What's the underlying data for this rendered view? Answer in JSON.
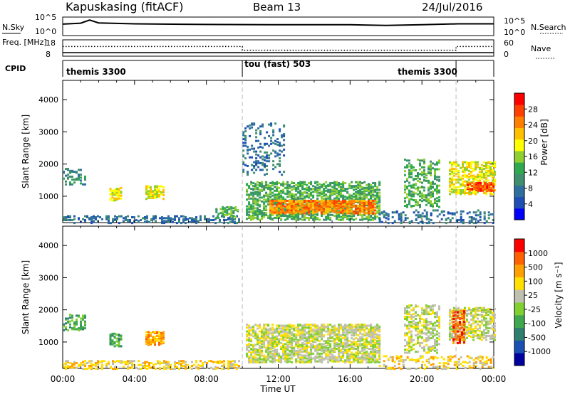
{
  "header": {
    "station": "Kapuskasing (fitACF)",
    "beam": "Beam 13",
    "date": "24/Jul/2016"
  },
  "chart_data": [
    {
      "type": "line",
      "panel": "noise",
      "ylabel_left": "N.Sky",
      "ylabel_right": "N.Search",
      "left_ticks": [
        "10^5",
        "10^0"
      ],
      "right_ticks": [
        "10^5",
        "10^0"
      ],
      "x": [
        0.0,
        1.0,
        1.5,
        2.0,
        4.0,
        8.0,
        12.0,
        16.0,
        18.0,
        20.0,
        22.0,
        24.0
      ],
      "values": [
        3.2,
        3.5,
        4.5,
        3.6,
        3.3,
        3.1,
        3.0,
        3.0,
        2.8,
        3.0,
        3.3,
        3.3
      ],
      "ylim": [
        0,
        5
      ]
    },
    {
      "type": "line",
      "panel": "frequency",
      "ylabel_left": "Freq. [MHz]",
      "ylabel_right": "Nave",
      "left_ticks": [
        "18",
        "8"
      ],
      "right_ticks": [
        "60",
        "0"
      ],
      "series": [
        {
          "name": "Freq.",
          "x": [
            0,
            24
          ],
          "values": [
            10,
            10
          ]
        },
        {
          "name": "Nave",
          "x": [
            0,
            10.0,
            10.0,
            12.0,
            21.9,
            21.9,
            24.0
          ],
          "values": [
            38,
            38,
            22,
            22,
            22,
            38,
            38
          ]
        }
      ]
    },
    {
      "type": "table",
      "panel": "cpid",
      "label": "CPID",
      "segments": [
        {
          "name": "themis 3300",
          "start": 0,
          "end": 10.0
        },
        {
          "name": "tou (fast) 503",
          "start": 10.0,
          "end": 21.9
        },
        {
          "name": "themis 3300",
          "start": 21.9,
          "end": 24.0
        }
      ]
    },
    {
      "type": "heatmap",
      "panel": "power",
      "ylabel": "Slant Range [km]",
      "yticks": [
        1000,
        2000,
        3000,
        4000
      ],
      "ylim": [
        180,
        4600
      ],
      "colorbar_label": "Power [dB]",
      "colorbar_ticks": [
        "4",
        "8",
        "12",
        "16",
        "20",
        "24",
        "28"
      ],
      "colors": [
        "#0000ff",
        "#1f4fb4",
        "#2f6fa0",
        "#3f8f6f",
        "#2fa84f",
        "#8fd030",
        "#ffff00",
        "#ffc000",
        "#ff8000",
        "#ff4000",
        "#ff0000"
      ],
      "regions": [
        {
          "t0": 0.0,
          "t1": 1.3,
          "r0": 1400,
          "r1": 1900,
          "v": 3,
          "d": 0.3
        },
        {
          "t0": 0.0,
          "t1": 9.8,
          "r0": 200,
          "r1": 420,
          "v": 2,
          "d": 0.3
        },
        {
          "t0": 2.6,
          "t1": 3.2,
          "r0": 900,
          "r1": 1300,
          "v": 6,
          "d": 0.5
        },
        {
          "t0": 4.6,
          "t1": 5.6,
          "r0": 950,
          "r1": 1350,
          "v": 6,
          "d": 0.55
        },
        {
          "t0": 8.5,
          "t1": 9.7,
          "r0": 300,
          "r1": 700,
          "v": 4,
          "d": 0.3
        },
        {
          "t0": 10.0,
          "t1": 12.3,
          "r0": 1700,
          "r1": 3300,
          "v": 2,
          "d": 0.15
        },
        {
          "t0": 10.2,
          "t1": 17.6,
          "r0": 300,
          "r1": 1500,
          "v": 4,
          "d": 0.45
        },
        {
          "t0": 11.5,
          "t1": 17.4,
          "r0": 500,
          "r1": 900,
          "v": 8,
          "d": 0.6
        },
        {
          "t0": 19.0,
          "t1": 21.0,
          "r0": 700,
          "r1": 2200,
          "v": 4,
          "d": 0.3
        },
        {
          "t0": 21.5,
          "t1": 24.0,
          "r0": 1100,
          "r1": 2100,
          "v": 6,
          "d": 0.45
        },
        {
          "t0": 22.5,
          "t1": 24.0,
          "r0": 1200,
          "r1": 1450,
          "v": 9,
          "d": 0.5
        },
        {
          "t0": 17.6,
          "t1": 24.0,
          "r0": 200,
          "r1": 600,
          "v": 2,
          "d": 0.2
        }
      ]
    },
    {
      "type": "heatmap",
      "panel": "velocity",
      "ylabel": "Slant Range [km]",
      "yticks": [
        1000,
        2000,
        3000,
        4000
      ],
      "ylim": [
        180,
        4600
      ],
      "xticks": [
        "00:00",
        "04:00",
        "08:00",
        "12:00",
        "16:00",
        "20:00",
        "00:00"
      ],
      "xlabel": "Time UT",
      "colorbar_label": "Velocity [m s⁻¹]",
      "colorbar_ticks": [
        "1000",
        "500",
        "100",
        "25",
        "-25",
        "-100",
        "-500",
        "-1000"
      ],
      "colors": [
        "#0000a0",
        "#1a4fb4",
        "#2f7f6f",
        "#3fa84f",
        "#7fd030",
        "#c0c0b0",
        "#ffe000",
        "#ffa000",
        "#ff6000",
        "#ff0000"
      ],
      "regions": [
        {
          "t0": 0.0,
          "t1": 1.3,
          "r0": 1400,
          "r1": 1900,
          "v": 3,
          "d": 0.3
        },
        {
          "t0": 2.6,
          "t1": 3.2,
          "r0": 900,
          "r1": 1300,
          "v": 3,
          "d": 0.5
        },
        {
          "t0": 4.6,
          "t1": 5.6,
          "r0": 950,
          "r1": 1350,
          "v": 7,
          "d": 0.55
        },
        {
          "t0": 0.0,
          "t1": 9.8,
          "r0": 200,
          "r1": 450,
          "v": 6,
          "d": 0.35
        },
        {
          "t0": 10.2,
          "t1": 17.6,
          "r0": 400,
          "r1": 1600,
          "v": 5,
          "d": 0.5
        },
        {
          "t0": 19.0,
          "t1": 21.0,
          "r0": 700,
          "r1": 2200,
          "v": 5,
          "d": 0.3
        },
        {
          "t0": 21.5,
          "t1": 24.0,
          "r0": 1100,
          "r1": 2100,
          "v": 5,
          "d": 0.45
        },
        {
          "t0": 21.7,
          "t1": 22.4,
          "r0": 1000,
          "r1": 2000,
          "v": 8,
          "d": 0.4
        },
        {
          "t0": 17.6,
          "t1": 24.0,
          "r0": 200,
          "r1": 600,
          "v": 6,
          "d": 0.2
        }
      ]
    }
  ]
}
